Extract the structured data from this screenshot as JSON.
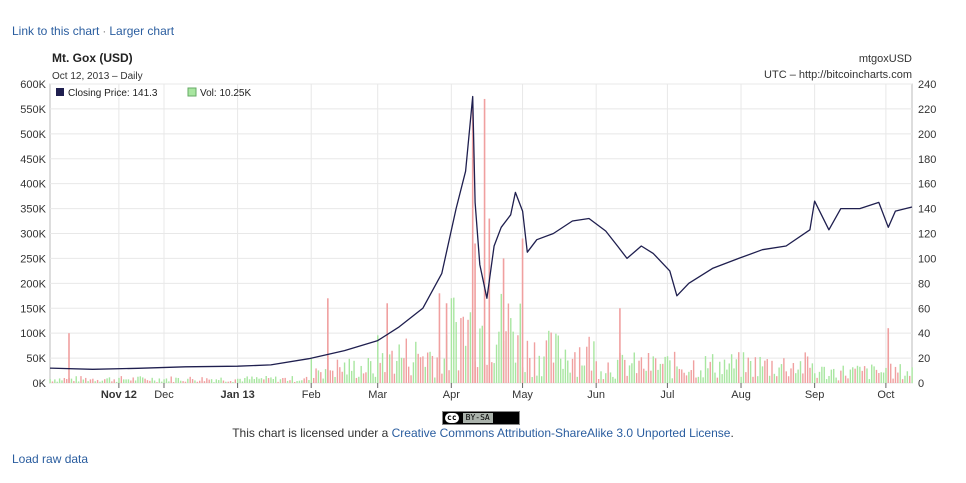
{
  "links": {
    "link_to_chart": "Link to this chart",
    "separator": "·",
    "larger_chart": "Larger chart",
    "load_raw": "Load raw data"
  },
  "license": {
    "badge_cc": "cc",
    "badge_text": "BY-SA",
    "prefix": "This chart is licensed under a ",
    "link": "Creative Commons Attribution-ShareAlike 3.0 Unported License",
    "suffix": "."
  },
  "colors": {
    "price_line": "#1f1f4f",
    "vol_green": "#a8e6a0",
    "vol_red": "#f0a0a0",
    "grid": "#e8e8e8",
    "axis": "#333333"
  },
  "chart_data": {
    "type": "line",
    "title": "Mt. Gox (USD)",
    "subtitle": "Oct 12, 2013 – Daily",
    "symbol": "mtgoxUSD",
    "source": "UTC – http://bitcoincharts.com",
    "legend": {
      "position": "top-left",
      "price_label": "Closing Price: 141.3",
      "volume_label": "Vol: 10.25K"
    },
    "x_range": [
      "2012-10-14",
      "2013-10-12"
    ],
    "x_ticks": [
      {
        "date": "2012-11-12",
        "label": "Nov 12",
        "bold": true
      },
      {
        "date": "2012-12-01",
        "label": "Dec",
        "bold": false
      },
      {
        "date": "2013-01-01",
        "label": "Jan 13",
        "bold": true
      },
      {
        "date": "2013-02-01",
        "label": "Feb",
        "bold": false
      },
      {
        "date": "2013-03-01",
        "label": "Mar",
        "bold": false
      },
      {
        "date": "2013-04-01",
        "label": "Apr",
        "bold": false
      },
      {
        "date": "2013-05-01",
        "label": "May",
        "bold": false
      },
      {
        "date": "2013-06-01",
        "label": "Jun",
        "bold": false
      },
      {
        "date": "2013-07-01",
        "label": "Jul",
        "bold": false
      },
      {
        "date": "2013-08-01",
        "label": "Aug",
        "bold": false
      },
      {
        "date": "2013-09-01",
        "label": "Sep",
        "bold": false
      },
      {
        "date": "2013-10-01",
        "label": "Oct",
        "bold": false
      }
    ],
    "volume_axis": {
      "side": "left",
      "range": [
        0,
        600000
      ],
      "ticks": [
        0,
        50000,
        100000,
        150000,
        200000,
        250000,
        300000,
        350000,
        400000,
        450000,
        500000,
        550000,
        600000
      ],
      "tick_labels": [
        "0K",
        "50K",
        "100K",
        "150K",
        "200K",
        "250K",
        "300K",
        "350K",
        "400K",
        "450K",
        "500K",
        "550K",
        "600K"
      ]
    },
    "price_axis": {
      "side": "right",
      "range": [
        0,
        240
      ],
      "ticks": [
        0,
        20,
        40,
        60,
        80,
        100,
        120,
        140,
        160,
        180,
        200,
        220,
        240
      ],
      "tick_labels": [
        "0",
        "20",
        "40",
        "60",
        "80",
        "100",
        "120",
        "140",
        "160",
        "180",
        "200",
        "220",
        "240"
      ]
    },
    "grid": true,
    "price_series": {
      "name": "Closing Price",
      "points": [
        [
          "2012-10-14",
          12.0
        ],
        [
          "2012-11-01",
          11.0
        ],
        [
          "2012-11-20",
          11.8
        ],
        [
          "2012-12-10",
          13.0
        ],
        [
          "2013-01-01",
          13.5
        ],
        [
          "2013-01-15",
          14.5
        ],
        [
          "2013-01-31",
          19.5
        ],
        [
          "2013-02-15",
          26.0
        ],
        [
          "2013-03-01",
          34.0
        ],
        [
          "2013-03-10",
          45.0
        ],
        [
          "2013-03-20",
          60.0
        ],
        [
          "2013-03-28",
          88.0
        ],
        [
          "2013-04-03",
          140.0
        ],
        [
          "2013-04-07",
          170.0
        ],
        [
          "2013-04-10",
          230.0
        ],
        [
          "2013-04-11",
          145.0
        ],
        [
          "2013-04-13",
          95.0
        ],
        [
          "2013-04-16",
          68.0
        ],
        [
          "2013-04-19",
          110.0
        ],
        [
          "2013-04-22",
          125.0
        ],
        [
          "2013-04-26",
          135.0
        ],
        [
          "2013-04-28",
          153.0
        ],
        [
          "2013-05-01",
          138.0
        ],
        [
          "2013-05-03",
          105.0
        ],
        [
          "2013-05-07",
          115.0
        ],
        [
          "2013-05-14",
          120.0
        ],
        [
          "2013-05-22",
          130.0
        ],
        [
          "2013-05-29",
          132.0
        ],
        [
          "2013-06-05",
          122.0
        ],
        [
          "2013-06-10",
          110.0
        ],
        [
          "2013-06-14",
          100.0
        ],
        [
          "2013-06-20",
          110.0
        ],
        [
          "2013-06-25",
          104.0
        ],
        [
          "2013-07-02",
          90.0
        ],
        [
          "2013-07-05",
          70.0
        ],
        [
          "2013-07-10",
          80.0
        ],
        [
          "2013-07-20",
          92.0
        ],
        [
          "2013-07-31",
          100.0
        ],
        [
          "2013-08-10",
          107.0
        ],
        [
          "2013-08-20",
          110.0
        ],
        [
          "2013-08-30",
          123.0
        ],
        [
          "2013-09-01",
          146.0
        ],
        [
          "2013-09-07",
          123.0
        ],
        [
          "2013-09-12",
          140.0
        ],
        [
          "2013-09-20",
          140.0
        ],
        [
          "2013-09-28",
          145.0
        ],
        [
          "2013-10-02",
          125.0
        ],
        [
          "2013-10-05",
          138.0
        ],
        [
          "2013-10-12",
          141.3
        ]
      ]
    },
    "volume_series": {
      "name": "Vol",
      "spikes": [
        {
          "date": "2013-04-10",
          "value": 560000
        },
        {
          "date": "2013-04-11",
          "value": 280000
        },
        {
          "date": "2013-04-15",
          "value": 570000
        },
        {
          "date": "2013-04-17",
          "value": 330000
        },
        {
          "date": "2013-02-08",
          "value": 170000
        },
        {
          "date": "2013-03-05",
          "value": 160000
        },
        {
          "date": "2013-03-27",
          "value": 180000
        },
        {
          "date": "2013-03-30",
          "value": 160000
        },
        {
          "date": "2013-04-23",
          "value": 250000
        },
        {
          "date": "2013-05-01",
          "value": 290000
        },
        {
          "date": "2013-06-11",
          "value": 150000
        },
        {
          "date": "2013-10-02",
          "value": 110000
        },
        {
          "date": "2012-10-22",
          "value": 100000
        }
      ]
    }
  }
}
